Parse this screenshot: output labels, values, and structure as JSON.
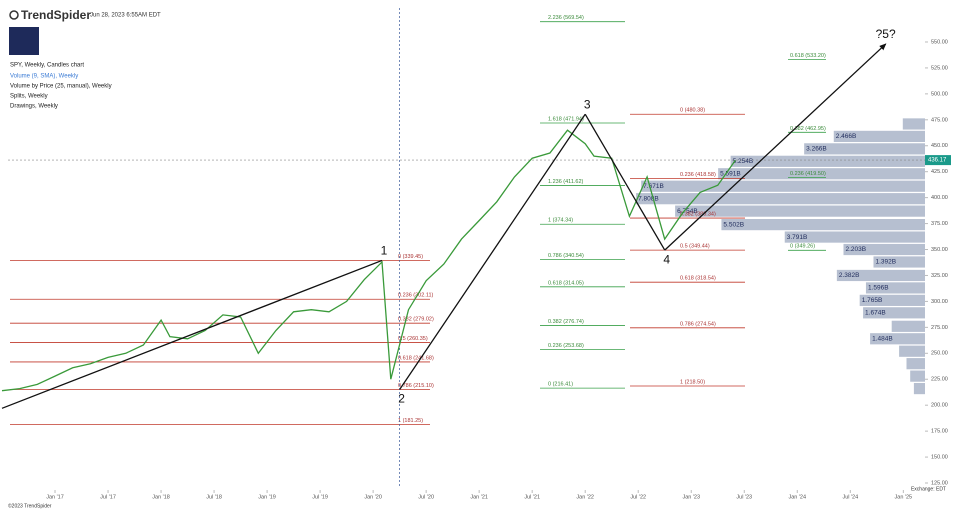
{
  "header": {
    "logo": "TrendSpider",
    "timestamp": "Jun 28, 2023 6:55AM EDT",
    "legend": [
      "SPY, Weekly, Candles chart",
      "Volume (9, SMA), Weekly",
      "Volume by Price (25, manual), Weekly",
      "Splits, Weekly",
      "Drawings, Weekly"
    ]
  },
  "footer": {
    "copyright": "©2023 TrendSpider",
    "exchange": "Exchange: EDT"
  },
  "chart_data": {
    "type": "line",
    "xlim": [
      "2016-07",
      "2025-03"
    ],
    "ylim": [
      120,
      560
    ],
    "xticks": [
      {
        "value": "2017-01",
        "label": "Jan '17"
      },
      {
        "value": "2017-07",
        "label": "Jul '17"
      },
      {
        "value": "2018-01",
        "label": "Jan '18"
      },
      {
        "value": "2018-07",
        "label": "Jul '18"
      },
      {
        "value": "2019-01",
        "label": "Jan '19"
      },
      {
        "value": "2019-07",
        "label": "Jul '19"
      },
      {
        "value": "2020-01",
        "label": "Jan '20"
      },
      {
        "value": "2020-07",
        "label": "Jul '20"
      },
      {
        "value": "2021-01",
        "label": "Jan '21"
      },
      {
        "value": "2021-07",
        "label": "Jul '21"
      },
      {
        "value": "2022-01",
        "label": "Jan '22"
      },
      {
        "value": "2022-07",
        "label": "Jul '22"
      },
      {
        "value": "2023-01",
        "label": "Jan '23"
      },
      {
        "value": "2023-07",
        "label": "Jul '23"
      },
      {
        "value": "2024-01",
        "label": "Jan '24"
      },
      {
        "value": "2024-07",
        "label": "Jul '24"
      },
      {
        "value": "2025-01",
        "label": "Jan '25"
      }
    ],
    "yticks": [
      {
        "value": 125,
        "label": "125.00"
      },
      {
        "value": 150,
        "label": "150.00"
      },
      {
        "value": 175,
        "label": "175.00"
      },
      {
        "value": 200,
        "label": "200.00"
      },
      {
        "value": 225,
        "label": "225.00"
      },
      {
        "value": 250,
        "label": "250.00"
      },
      {
        "value": 275,
        "label": "275.00"
      },
      {
        "value": 300,
        "label": "300.00"
      },
      {
        "value": 325,
        "label": "325.00"
      },
      {
        "value": 350,
        "label": "350.00"
      },
      {
        "value": 375,
        "label": "375.00"
      },
      {
        "value": 400,
        "label": "400.00"
      },
      {
        "value": 425,
        "label": "425.00"
      },
      {
        "value": 450,
        "label": "450.00"
      },
      {
        "value": 475,
        "label": "475.00"
      },
      {
        "value": 500,
        "label": "500.00"
      },
      {
        "value": 525,
        "label": "525.00"
      },
      {
        "value": 550,
        "label": "550.00"
      }
    ],
    "x": [
      "2016-07",
      "2016-09",
      "2016-11",
      "2017-01",
      "2017-03",
      "2017-05",
      "2017-07",
      "2017-09",
      "2017-11",
      "2018-01",
      "2018-02",
      "2018-04",
      "2018-06",
      "2018-08",
      "2018-10",
      "2018-12",
      "2019-02",
      "2019-04",
      "2019-06",
      "2019-08",
      "2019-10",
      "2019-12",
      "2020-02",
      "2020-03",
      "2020-05",
      "2020-07",
      "2020-09",
      "2020-11",
      "2021-01",
      "2021-03",
      "2021-05",
      "2021-07",
      "2021-09",
      "2021-11",
      "2022-01",
      "2022-02",
      "2022-04",
      "2022-06",
      "2022-08",
      "2022-10",
      "2022-12",
      "2023-02",
      "2023-04",
      "2023-06"
    ],
    "series": [
      {
        "name": "SPY",
        "color": "#3a9a3a",
        "values": [
          214,
          216,
          220,
          228,
          236,
          240,
          246,
          250,
          258,
          282,
          266,
          264,
          272,
          287,
          285,
          250,
          272,
          290,
          292,
          290,
          300,
          321,
          338,
          225,
          292,
          320,
          336,
          360,
          378,
          396,
          420,
          438,
          443,
          465,
          452,
          440,
          438,
          382,
          420,
          360,
          385,
          405,
          412,
          436
        ]
      }
    ],
    "current_price": {
      "value": 436.17,
      "label": "436.17"
    },
    "crosshair_x": "2020-04",
    "waves": [
      {
        "label": "1",
        "x": "2020-02",
        "y": 339.45
      },
      {
        "label": "2",
        "x": "2020-04",
        "y": 215.1
      },
      {
        "label": "3",
        "x": "2022-01",
        "y": 480.38
      },
      {
        "label": "4",
        "x": "2022-10",
        "y": 349.44
      },
      {
        "label": "?5?",
        "x": "2024-11",
        "y": 548
      }
    ],
    "trend_start": {
      "x": "2016-07",
      "y": 197
    },
    "fib_sets": [
      {
        "color": "#c0392b",
        "levels": [
          {
            "price": 339.45,
            "label": "0 (339.45)"
          },
          {
            "price": 302.11,
            "label": "0.236 (302.11)"
          },
          {
            "price": 279.02,
            "label": "0.382 (279.02)"
          },
          {
            "price": 260.35,
            "label": "0.5 (260.35)"
          },
          {
            "price": 241.68,
            "label": "0.618 (241.68)"
          },
          {
            "price": 215.1,
            "label": "0.786 (215.10)"
          },
          {
            "price": 181.25,
            "label": "1 (181.25)"
          }
        ]
      },
      {
        "color": "#3aa04a",
        "levels": [
          {
            "price": 569.54,
            "label": "2.236 (569.54)"
          },
          {
            "price": 471.94,
            "label": "1.618 (471.94)"
          },
          {
            "price": 411.62,
            "label": "1.236 (411.62)"
          },
          {
            "price": 374.34,
            "label": "1 (374.34)"
          },
          {
            "price": 340.54,
            "label": "0.786 (340.54)"
          },
          {
            "price": 314.05,
            "label": "0.618 (314.05)"
          },
          {
            "price": 276.74,
            "label": "0.382 (276.74)"
          },
          {
            "price": 253.68,
            "label": "0.236 (253.68)"
          },
          {
            "price": 216.41,
            "label": "0 (216.41)"
          }
        ]
      },
      {
        "color": "#c0392b",
        "levels": [
          {
            "price": 480.38,
            "label": "0 (480.38)"
          },
          {
            "price": 418.58,
            "label": "0.236 (418.58)"
          },
          {
            "price": 380.34,
            "label": "0.382 (380.34)"
          },
          {
            "price": 349.44,
            "label": "0.5 (349.44)"
          },
          {
            "price": 318.54,
            "label": "0.618 (318.54)"
          },
          {
            "price": 274.54,
            "label": "0.786 (274.54)"
          },
          {
            "price": 218.5,
            "label": "1 (218.50)"
          }
        ]
      },
      {
        "color": "#3aa04a",
        "levels": [
          {
            "price": 533.2,
            "label": "0.618 (533.20)"
          },
          {
            "price": 462.95,
            "label": "0.382 (462.95)"
          },
          {
            "price": 419.5,
            "label": "0.236 (419.50)"
          },
          {
            "price": 349.26,
            "label": "0 (349.26)"
          }
        ]
      }
    ],
    "volume_profile": {
      "color": "#a9b4c8",
      "prices": [
        471,
        459,
        447,
        435,
        423,
        411,
        399,
        387,
        374,
        362,
        350,
        338,
        325,
        313,
        301,
        289,
        276,
        264,
        252,
        240,
        228,
        216
      ],
      "values": [
        0.6,
        2.466,
        3.266,
        5.254,
        5.591,
        7.671,
        7.808,
        6.754,
        5.502,
        3.791,
        2.203,
        1.392,
        2.382,
        1.596,
        1.765,
        1.674,
        0.9,
        1.484,
        0.7,
        0.5,
        0.4,
        0.3
      ],
      "value_labels": [
        null,
        "2.466B",
        "3.266B",
        "5.254B",
        "5.591B",
        "7.671B",
        "7.808B",
        "6.754B",
        "5.502B",
        "3.791B",
        "2.203B",
        "1.392B",
        "2.382B",
        "1.596B",
        "1.765B",
        "1.674B",
        null,
        "1.484B",
        null,
        null,
        null,
        null
      ]
    }
  }
}
